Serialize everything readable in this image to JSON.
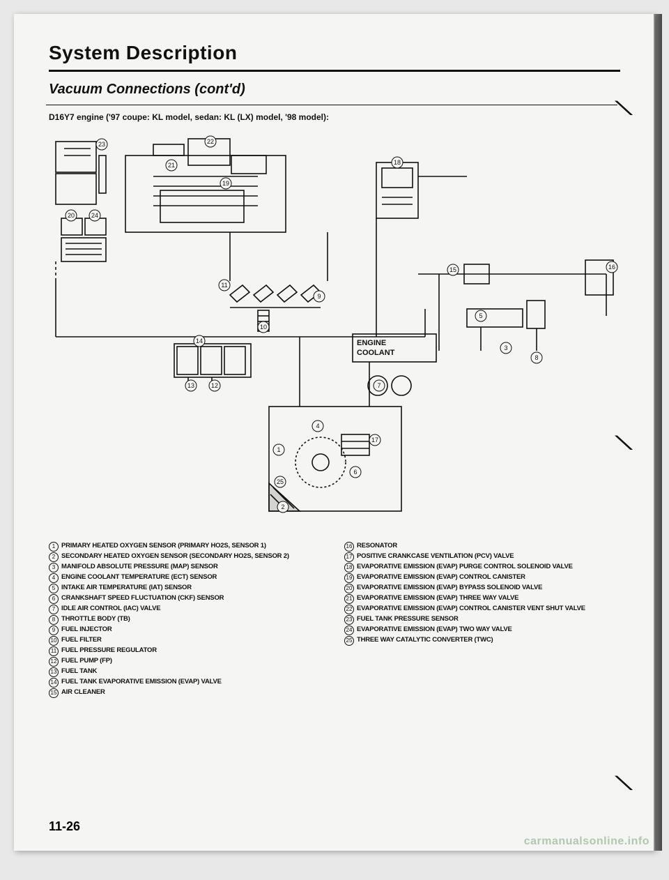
{
  "title": "System Description",
  "subtitle": "Vacuum Connections (cont'd)",
  "engine_line": "D16Y7 engine ('97 coupe: KL model, sedan: KL (LX) model, '98 model):",
  "page_number": "11-26",
  "watermark": "carmanualsonline.info",
  "diagram": {
    "label_engine": "ENGINE",
    "label_coolant": "COOLANT",
    "callouts": [
      1,
      2,
      3,
      4,
      5,
      6,
      7,
      8,
      9,
      10,
      11,
      12,
      13,
      14,
      15,
      16,
      17,
      18,
      19,
      20,
      21,
      22,
      23,
      24,
      25
    ],
    "stroke": "#111111",
    "bg": "#f5f5f3"
  },
  "legend_left": [
    {
      "n": "1",
      "t": "PRIMARY HEATED OXYGEN SENSOR (PRIMARY HO2S, SENSOR 1)"
    },
    {
      "n": "2",
      "t": "SECONDARY HEATED OXYGEN SENSOR (SECONDARY HO2S, SENSOR 2)"
    },
    {
      "n": "3",
      "t": "MANIFOLD ABSOLUTE PRESSURE (MAP) SENSOR"
    },
    {
      "n": "4",
      "t": "ENGINE COOLANT TEMPERATURE (ECT) SENSOR"
    },
    {
      "n": "5",
      "t": "INTAKE AIR TEMPERATURE (IAT) SENSOR"
    },
    {
      "n": "6",
      "t": "CRANKSHAFT SPEED FLUCTUATION (CKF) SENSOR"
    },
    {
      "n": "7",
      "t": "IDLE AIR CONTROL (IAC) VALVE"
    },
    {
      "n": "8",
      "t": "THROTTLE BODY (TB)"
    },
    {
      "n": "9",
      "t": "FUEL INJECTOR"
    },
    {
      "n": "10",
      "t": "FUEL FILTER"
    },
    {
      "n": "11",
      "t": "FUEL PRESSURE REGULATOR"
    },
    {
      "n": "12",
      "t": "FUEL PUMP (FP)"
    },
    {
      "n": "13",
      "t": "FUEL TANK"
    },
    {
      "n": "14",
      "t": "FUEL TANK EVAPORATIVE EMISSION (EVAP) VALVE"
    },
    {
      "n": "15",
      "t": "AIR CLEANER"
    }
  ],
  "legend_right": [
    {
      "n": "16",
      "t": "RESONATOR"
    },
    {
      "n": "17",
      "t": "POSITIVE CRANKCASE VENTILATION (PCV) VALVE"
    },
    {
      "n": "18",
      "t": "EVAPORATIVE EMISSION (EVAP) PURGE CONTROL SOLENOID VALVE"
    },
    {
      "n": "19",
      "t": "EVAPORATIVE EMISSION (EVAP) CONTROL CANISTER"
    },
    {
      "n": "20",
      "t": "EVAPORATIVE EMISSION (EVAP) BYPASS SOLENOID VALVE"
    },
    {
      "n": "21",
      "t": "EVAPORATIVE EMISSION (EVAP) THREE WAY VALVE"
    },
    {
      "n": "22",
      "t": "EVAPORATIVE EMISSION (EVAP) CONTROL CANISTER VENT SHUT VALVE"
    },
    {
      "n": "23",
      "t": "FUEL TANK PRESSURE SENSOR"
    },
    {
      "n": "24",
      "t": "EVAPORATIVE EMISSION (EVAP) TWO WAY VALVE"
    },
    {
      "n": "25",
      "t": "THREE WAY CATALYTIC CONVERTER (TWC)"
    }
  ]
}
